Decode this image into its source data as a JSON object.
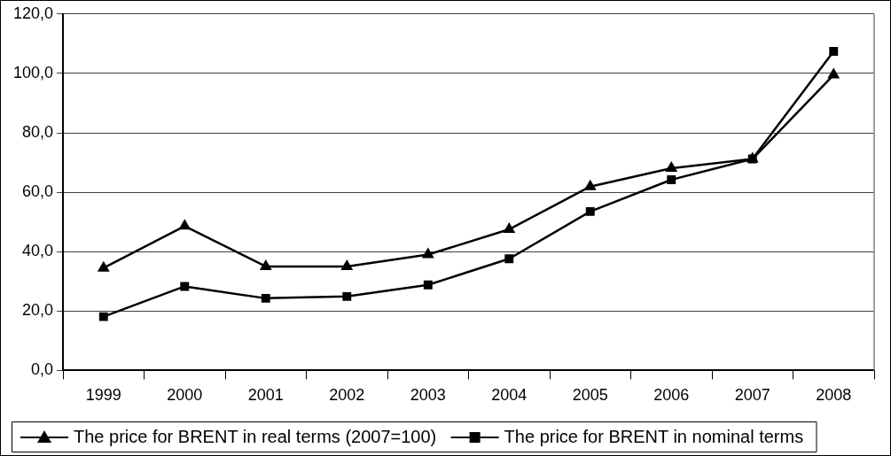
{
  "chart_data": {
    "type": "line",
    "categories": [
      "1999",
      "2000",
      "2001",
      "2002",
      "2003",
      "2004",
      "2005",
      "2006",
      "2007",
      "2008"
    ],
    "series": [
      {
        "name": "The price for BRENT in real terms (2007=100)",
        "color": "#000000",
        "marker": "triangle",
        "values": [
          34.5,
          48.6,
          35.0,
          35.0,
          39.0,
          47.5,
          61.9,
          68.1,
          71.2,
          99.5
        ]
      },
      {
        "name": "The price for BRENT in nominal terms",
        "color": "#000000",
        "marker": "square",
        "values": [
          18.1,
          28.3,
          24.3,
          24.9,
          28.8,
          37.6,
          53.5,
          64.2,
          71.2,
          107.4
        ]
      }
    ],
    "ylim": [
      0,
      120
    ],
    "yticks": [
      {
        "value": 0,
        "label": "0,0"
      },
      {
        "value": 20,
        "label": "20,0"
      },
      {
        "value": 40,
        "label": "40,0"
      },
      {
        "value": 60,
        "label": "60,0"
      },
      {
        "value": 80,
        "label": "80,0"
      },
      {
        "value": 100,
        "label": "100,0"
      },
      {
        "value": 120,
        "label": "120,0"
      }
    ],
    "grid": "y",
    "legend": "bottom",
    "line_style": "solid"
  }
}
